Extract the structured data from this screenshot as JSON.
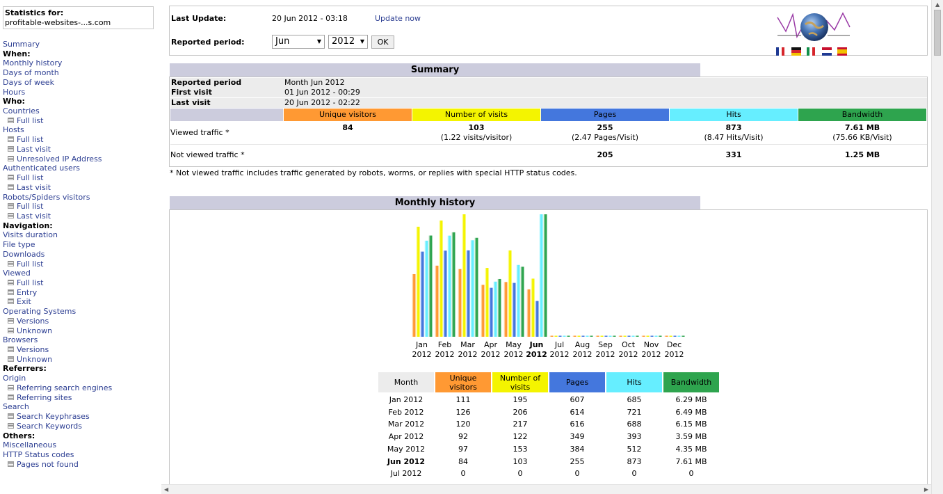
{
  "colors": {
    "unique": "#ff9933",
    "visits": "#f4f400",
    "pages": "#4477dd",
    "hits": "#66eeff",
    "bandwidth": "#2ea44e",
    "section_title": "#ccccdd",
    "link": "#2c3e92"
  },
  "menu": {
    "stats_for_label": "Statistics for:",
    "site_name": "profitable-websites-...s.com",
    "items": [
      {
        "text": "Summary",
        "type": "link"
      },
      {
        "text": "When:",
        "type": "head"
      },
      {
        "text": "Monthly history",
        "type": "link"
      },
      {
        "text": "Days of month",
        "type": "link"
      },
      {
        "text": "Days of week",
        "type": "link"
      },
      {
        "text": "Hours",
        "type": "link"
      },
      {
        "text": "Who:",
        "type": "head"
      },
      {
        "text": "Countries",
        "type": "link"
      },
      {
        "text": "Full list",
        "type": "sub"
      },
      {
        "text": "Hosts",
        "type": "link"
      },
      {
        "text": "Full list",
        "type": "sub"
      },
      {
        "text": "Last visit",
        "type": "sub"
      },
      {
        "text": "Unresolved IP Address",
        "type": "sub"
      },
      {
        "text": "Authenticated users",
        "type": "link"
      },
      {
        "text": "Full list",
        "type": "sub"
      },
      {
        "text": "Last visit",
        "type": "sub"
      },
      {
        "text": "Robots/Spiders visitors",
        "type": "link"
      },
      {
        "text": "Full list",
        "type": "sub"
      },
      {
        "text": "Last visit",
        "type": "sub"
      },
      {
        "text": "Navigation:",
        "type": "head"
      },
      {
        "text": "Visits duration",
        "type": "link"
      },
      {
        "text": "File type",
        "type": "link"
      },
      {
        "text": "Downloads",
        "type": "link"
      },
      {
        "text": "Full list",
        "type": "sub"
      },
      {
        "text": "Viewed",
        "type": "link"
      },
      {
        "text": "Full list",
        "type": "sub"
      },
      {
        "text": "Entry",
        "type": "sub"
      },
      {
        "text": "Exit",
        "type": "sub"
      },
      {
        "text": "Operating Systems",
        "type": "link"
      },
      {
        "text": "Versions",
        "type": "sub"
      },
      {
        "text": "Unknown",
        "type": "sub"
      },
      {
        "text": "Browsers",
        "type": "link"
      },
      {
        "text": "Versions",
        "type": "sub"
      },
      {
        "text": "Unknown",
        "type": "sub"
      },
      {
        "text": "Referrers:",
        "type": "head"
      },
      {
        "text": "Origin",
        "type": "link"
      },
      {
        "text": "Referring search engines",
        "type": "sub"
      },
      {
        "text": "Referring sites",
        "type": "sub"
      },
      {
        "text": "Search",
        "type": "link"
      },
      {
        "text": "Search Keyphrases",
        "type": "sub"
      },
      {
        "text": "Search Keywords",
        "type": "sub"
      },
      {
        "text": "Others:",
        "type": "head"
      },
      {
        "text": "Miscellaneous",
        "type": "link"
      },
      {
        "text": "HTTP Status codes",
        "type": "link"
      },
      {
        "text": "Pages not found",
        "type": "sub"
      }
    ]
  },
  "top": {
    "last_update_label": "Last Update:",
    "last_update_value": "20 Jun 2012 - 03:18",
    "update_now": "Update now",
    "reported_period_label": "Reported period:",
    "month_select": "Jun",
    "year_select": "2012",
    "ok": "OK"
  },
  "summary": {
    "title": "Summary",
    "reported_period_label": "Reported period",
    "reported_period_value": "Month Jun 2012",
    "first_visit_label": "First visit",
    "first_visit_value": "01 Jun 2012 - 00:29",
    "last_visit_label": "Last visit",
    "last_visit_value": "20 Jun 2012 - 02:22",
    "headers": {
      "unique": "Unique visitors",
      "visits": "Number of visits",
      "pages": "Pages",
      "hits": "Hits",
      "bandwidth": "Bandwidth"
    },
    "viewed_label": "Viewed traffic *",
    "viewed": {
      "unique": "84",
      "visits": "103",
      "visits_sub": "(1.22 visits/visitor)",
      "pages": "255",
      "pages_sub": "(2.47 Pages/Visit)",
      "hits": "873",
      "hits_sub": "(8.47 Hits/Visit)",
      "bandwidth": "7.61 MB",
      "bandwidth_sub": "(75.66 KB/Visit)"
    },
    "not_viewed_label": "Not viewed traffic *",
    "not_viewed": {
      "pages": "205",
      "hits": "331",
      "bandwidth": "1.25 MB"
    },
    "note": "* Not viewed traffic includes traffic generated by robots, worms, or replies with special HTTP status codes."
  },
  "monthly": {
    "title": "Monthly history",
    "table_headers": {
      "month": "Month",
      "unique": "Unique visitors",
      "visits": "Number of visits",
      "pages": "Pages",
      "hits": "Hits",
      "bandwidth": "Bandwidth"
    },
    "rows": [
      {
        "month": "Jan 2012",
        "unique": "111",
        "visits": "195",
        "pages": "607",
        "hits": "685",
        "bandwidth": "6.29 MB",
        "current": false
      },
      {
        "month": "Feb 2012",
        "unique": "126",
        "visits": "206",
        "pages": "614",
        "hits": "721",
        "bandwidth": "6.49 MB",
        "current": false
      },
      {
        "month": "Mar 2012",
        "unique": "120",
        "visits": "217",
        "pages": "616",
        "hits": "688",
        "bandwidth": "6.15 MB",
        "current": false
      },
      {
        "month": "Apr 2012",
        "unique": "92",
        "visits": "122",
        "pages": "349",
        "hits": "393",
        "bandwidth": "3.59 MB",
        "current": false
      },
      {
        "month": "May 2012",
        "unique": "97",
        "visits": "153",
        "pages": "384",
        "hits": "512",
        "bandwidth": "4.35 MB",
        "current": false
      },
      {
        "month": "Jun 2012",
        "unique": "84",
        "visits": "103",
        "pages": "255",
        "hits": "873",
        "bandwidth": "7.61 MB",
        "current": true
      },
      {
        "month": "Jul 2012",
        "unique": "0",
        "visits": "0",
        "pages": "0",
        "hits": "0",
        "bandwidth": "0",
        "current": false
      }
    ]
  },
  "chart_data": {
    "type": "bar",
    "categories": [
      "Jan",
      "Feb",
      "Mar",
      "Apr",
      "May",
      "Jun",
      "Jul",
      "Aug",
      "Sep",
      "Oct",
      "Nov",
      "Dec"
    ],
    "year_labels": [
      "2012",
      "2012",
      "2012",
      "2012",
      "2012",
      "2012",
      "2012",
      "2012",
      "2012",
      "2012",
      "2012",
      "2012"
    ],
    "current_index": 5,
    "series": [
      {
        "key": "unique",
        "values": [
          111,
          126,
          120,
          92,
          97,
          84,
          0,
          0,
          0,
          0,
          0,
          0
        ]
      },
      {
        "key": "visits",
        "values": [
          195,
          206,
          217,
          122,
          153,
          103,
          0,
          0,
          0,
          0,
          0,
          0
        ]
      },
      {
        "key": "pages",
        "values": [
          607,
          614,
          616,
          349,
          384,
          255,
          0,
          0,
          0,
          0,
          0,
          0
        ]
      },
      {
        "key": "hits",
        "values": [
          685,
          721,
          688,
          393,
          512,
          873,
          0,
          0,
          0,
          0,
          0,
          0
        ]
      },
      {
        "key": "bandwidth",
        "values": [
          6.29,
          6.49,
          6.15,
          3.59,
          4.35,
          7.61,
          0,
          0,
          0,
          0,
          0,
          0
        ]
      }
    ]
  }
}
